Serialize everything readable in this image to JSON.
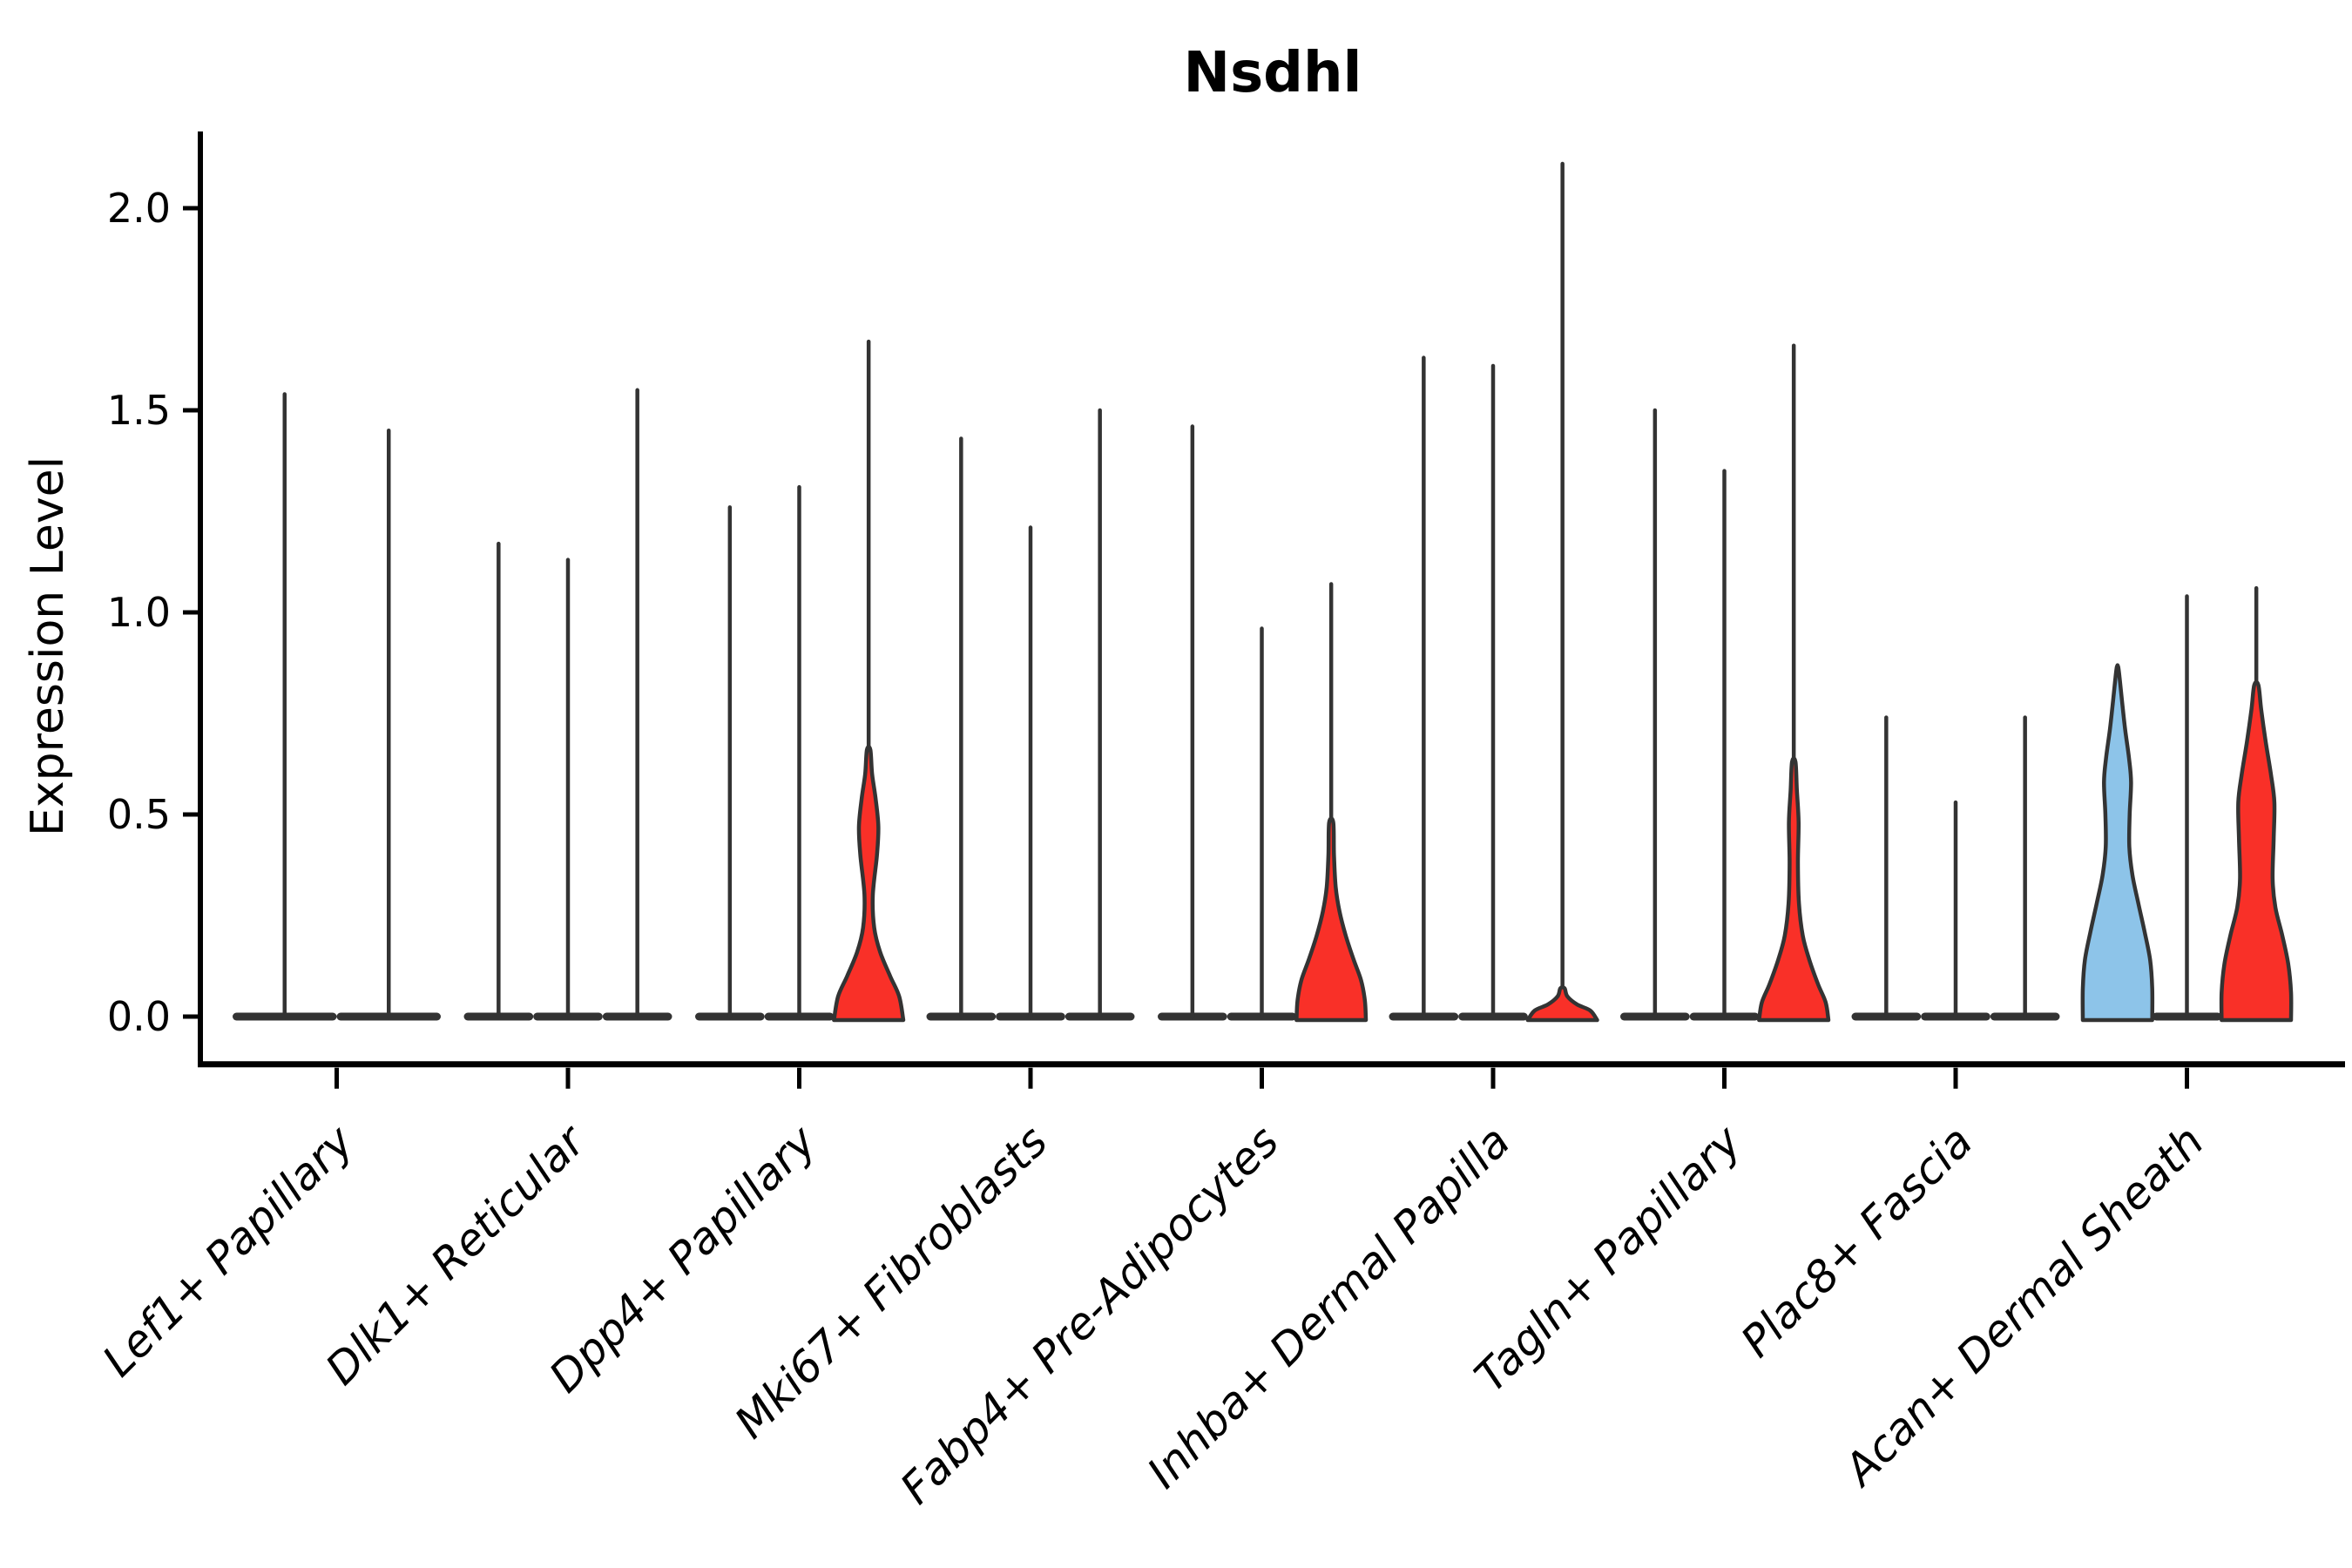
{
  "chart_data": {
    "type": "violin",
    "title": "Nsdhl",
    "ylabel": "Expression Level",
    "xlabel": "",
    "yticks": [
      0.0,
      0.5,
      1.0,
      1.5,
      2.0
    ],
    "ytick_labels": [
      "0.0",
      "0.5",
      "1.0",
      "1.5",
      "2.0"
    ],
    "ylim": [
      -0.118,
      2.19
    ],
    "grid": false,
    "legend": "none",
    "colors": {
      "red": "#F93028",
      "blue": "#8DC4E9",
      "violin_stroke": "#333333",
      "axis": "#000000"
    },
    "categories": [
      "Lef1+ Papillary",
      "Dlk1+ Reticular",
      "Dpp4+ Papillary",
      "Mki67+ Fibroblasts",
      "Fabp4+ Pre-Adipocytes",
      "Inhba+ Dermal Papilla",
      "Tagln+ Papillary",
      "Plac8+ Fascia",
      "Acan+ Dermal Sheath"
    ],
    "groups": [
      {
        "label": "Lef1+ Papillary",
        "violins": [
          {
            "top": 1.54,
            "color": "plain"
          },
          {
            "top": 1.45,
            "color": "plain"
          }
        ]
      },
      {
        "label": "Dlk1+ Reticular",
        "violins": [
          {
            "top": 1.17,
            "color": "plain"
          },
          {
            "top": 1.13,
            "color": "plain"
          },
          {
            "top": 1.55,
            "color": "plain"
          }
        ]
      },
      {
        "label": "Dpp4+ Papillary",
        "violins": [
          {
            "top": 1.26,
            "color": "plain"
          },
          {
            "top": 1.31,
            "color": "plain"
          },
          {
            "top": 1.67,
            "color": "red",
            "body": [
              [
                0,
                1
              ],
              [
                0.05,
                0.88
              ],
              [
                0.1,
                0.62
              ],
              [
                0.16,
                0.33
              ],
              [
                0.22,
                0.16
              ],
              [
                0.3,
                0.12
              ],
              [
                0.4,
                0.24
              ],
              [
                0.47,
                0.28
              ],
              [
                0.54,
                0.2
              ],
              [
                0.6,
                0.1
              ],
              [
                0.66,
                0.05
              ]
            ]
          }
        ]
      },
      {
        "label": "Mki67+ Fibroblasts",
        "violins": [
          {
            "top": 1.43,
            "color": "plain"
          },
          {
            "top": 1.21,
            "color": "plain"
          },
          {
            "top": 1.5,
            "color": "plain"
          }
        ]
      },
      {
        "label": "Fabp4+ Pre-Adipocytes",
        "violins": [
          {
            "top": 1.46,
            "color": "plain"
          },
          {
            "top": 0.96,
            "color": "plain"
          },
          {
            "top": 1.07,
            "color": "red",
            "body": [
              [
                0,
                1
              ],
              [
                0.04,
                0.97
              ],
              [
                0.09,
                0.86
              ],
              [
                0.14,
                0.65
              ],
              [
                0.2,
                0.42
              ],
              [
                0.26,
                0.24
              ],
              [
                0.32,
                0.13
              ],
              [
                0.4,
                0.08
              ],
              [
                0.48,
                0.06
              ]
            ]
          }
        ]
      },
      {
        "label": "Inhba+ Dermal Papilla",
        "violins": [
          {
            "top": 1.63,
            "color": "plain"
          },
          {
            "top": 1.61,
            "color": "plain"
          },
          {
            "top": 2.11,
            "color": "red",
            "body": [
              [
                0,
                1
              ],
              [
                0.015,
                0.8
              ],
              [
                0.03,
                0.42
              ],
              [
                0.05,
                0.14
              ],
              [
                0.07,
                0.06
              ]
            ]
          }
        ]
      },
      {
        "label": "Tagln+ Papillary",
        "violins": [
          {
            "top": 1.5,
            "color": "plain"
          },
          {
            "top": 1.35,
            "color": "plain"
          },
          {
            "top": 1.66,
            "color": "red",
            "body": [
              [
                0,
                1
              ],
              [
                0.035,
                0.92
              ],
              [
                0.08,
                0.7
              ],
              [
                0.14,
                0.45
              ],
              [
                0.2,
                0.26
              ],
              [
                0.28,
                0.15
              ],
              [
                0.38,
                0.12
              ],
              [
                0.48,
                0.14
              ],
              [
                0.56,
                0.09
              ],
              [
                0.63,
                0.05
              ]
            ]
          }
        ]
      },
      {
        "label": "Plac8+ Fascia",
        "violins": [
          {
            "top": 0.74,
            "color": "plain"
          },
          {
            "top": 0.53,
            "color": "plain"
          },
          {
            "top": 0.74,
            "color": "plain"
          }
        ]
      },
      {
        "label": "Acan+ Dermal Sheath",
        "violins": [
          {
            "top": 0.87,
            "color": "blue",
            "body": [
              [
                0,
                1
              ],
              [
                0.07,
                1.0
              ],
              [
                0.14,
                0.94
              ],
              [
                0.21,
                0.78
              ],
              [
                0.28,
                0.6
              ],
              [
                0.35,
                0.43
              ],
              [
                0.42,
                0.34
              ],
              [
                0.5,
                0.35
              ],
              [
                0.58,
                0.39
              ],
              [
                0.64,
                0.33
              ],
              [
                0.71,
                0.22
              ],
              [
                0.78,
                0.13
              ],
              [
                0.83,
                0.07
              ],
              [
                0.865,
                0.02
              ]
            ]
          },
          {
            "top": 1.04,
            "color": "plain"
          },
          {
            "top": 1.06,
            "color": "red",
            "body": [
              [
                0,
                1
              ],
              [
                0.06,
                1.0
              ],
              [
                0.13,
                0.92
              ],
              [
                0.2,
                0.75
              ],
              [
                0.27,
                0.55
              ],
              [
                0.34,
                0.47
              ],
              [
                0.44,
                0.5
              ],
              [
                0.53,
                0.52
              ],
              [
                0.6,
                0.42
              ],
              [
                0.68,
                0.27
              ],
              [
                0.76,
                0.14
              ],
              [
                0.82,
                0.06
              ]
            ]
          }
        ]
      }
    ]
  }
}
